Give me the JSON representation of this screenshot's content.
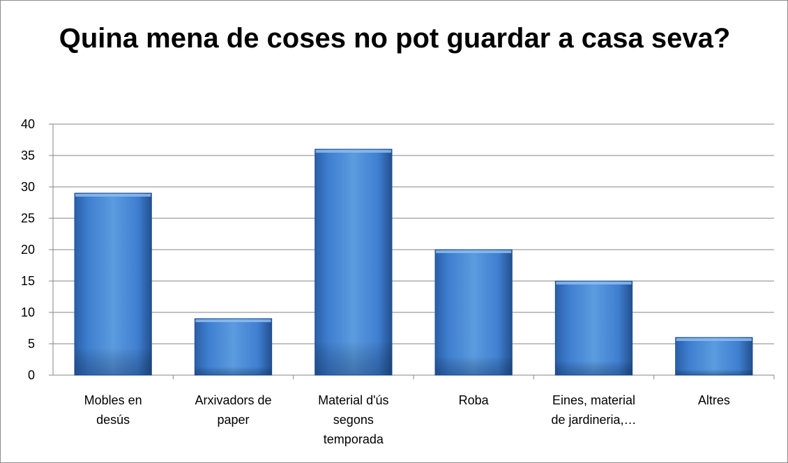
{
  "chart_data": {
    "type": "bar",
    "title": "Quina mena de coses no pot guardar a casa seva?",
    "categories": [
      [
        "Mobles en",
        "desús"
      ],
      [
        "Arxivadors de",
        "paper"
      ],
      [
        "Material d'ús",
        "segons",
        "temporada"
      ],
      [
        "Roba"
      ],
      [
        "Eines, material",
        "de jardineria,…"
      ],
      [
        "Altres"
      ]
    ],
    "values": [
      29,
      9,
      36,
      20,
      15,
      6
    ],
    "ylim": [
      0,
      40
    ],
    "yticks": [
      0,
      5,
      10,
      15,
      20,
      25,
      30,
      35,
      40
    ],
    "grid": true,
    "legend": "none",
    "colors": {
      "bar_light": "#5b9bdf",
      "bar_mid": "#3a78c9",
      "bar_dark": "#1f4f8f",
      "bar_top": "#8dbcf0",
      "grid": "#868686",
      "frame": "#8c8c8c"
    }
  }
}
